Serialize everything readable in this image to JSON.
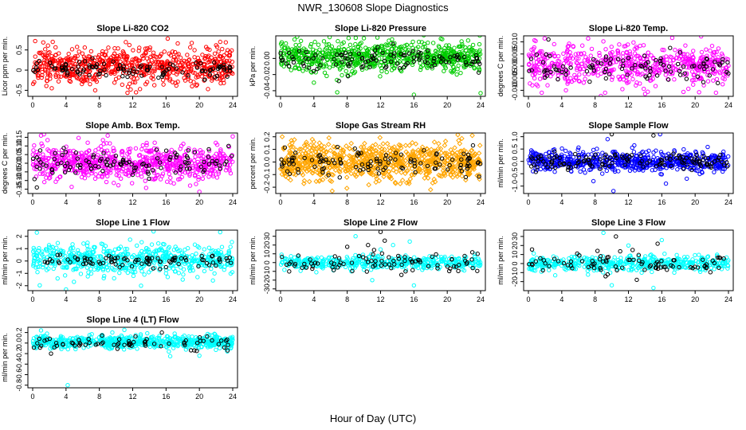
{
  "figure": {
    "title": "NWR_130608  Slope Diagnostics",
    "xlabel": "Hour of Day (UTC)"
  },
  "chart_data": [
    {
      "type": "scatter",
      "title": "Slope Li-820 CO2",
      "ylabel": "Licor ppm per min.",
      "xlim": [
        0,
        24
      ],
      "xticks": [
        0,
        4,
        8,
        12,
        16,
        20,
        24
      ],
      "ylim": [
        -0.65,
        0.85
      ],
      "yticks": [
        -0.5,
        0,
        0.5
      ],
      "yticklabels": [
        "-0.5",
        "0",
        "0.5"
      ],
      "series": [
        {
          "color": "#ff0000",
          "marker": "open-circle",
          "n": 700,
          "center": 0.1,
          "spread": 0.22,
          "outliers": [
            [
              0.3,
              0.72
            ],
            [
              16.2,
              0.78
            ],
            [
              22.5,
              0.7
            ],
            [
              12.4,
              -0.55
            ],
            [
              7.5,
              -0.5
            ]
          ]
        },
        {
          "color": "#000000",
          "marker": "open-circle",
          "n": 110,
          "center": 0.02,
          "spread": 0.12
        }
      ]
    },
    {
      "type": "scatter",
      "title": "Slope Li-820 Pressure",
      "ylabel": "kPa per min.",
      "xlim": [
        0,
        24
      ],
      "xticks": [
        0,
        4,
        8,
        12,
        16,
        20,
        24
      ],
      "ylim": [
        -0.047,
        0.028
      ],
      "yticks": [
        -0.04,
        -0.02,
        0
      ],
      "yticklabels": [
        "-0.04",
        "-0.02",
        "0.00"
      ],
      "series": [
        {
          "color": "#00cc00",
          "marker": "open-circle",
          "n": 700,
          "center": 0.002,
          "spread": 0.009,
          "outliers": [
            [
              2.0,
              0.027
            ],
            [
              4.0,
              -0.03
            ],
            [
              6.8,
              -0.042
            ],
            [
              10.0,
              0.025
            ],
            [
              16.0,
              -0.045
            ],
            [
              24.0,
              -0.043
            ],
            [
              13.0,
              0.022
            ]
          ]
        },
        {
          "color": "#000000",
          "marker": "open-circle",
          "n": 110,
          "center": 0.0,
          "spread": 0.006,
          "outliers": [
            [
              7.0,
              -0.028
            ],
            [
              8.1,
              -0.022
            ],
            [
              13.5,
              0.018
            ]
          ]
        }
      ]
    },
    {
      "type": "scatter",
      "title": "Slope Li-820 Temp.",
      "ylabel": "degrees C per min.",
      "xlim": [
        0,
        24
      ],
      "xticks": [
        0,
        4,
        8,
        12,
        16,
        20,
        24
      ],
      "ylim": [
        -0.0125,
        0.0125
      ],
      "yticks": [
        -0.01,
        -0.005,
        0,
        0.005,
        0.01
      ],
      "yticklabels": [
        "-0.010",
        "-0.005",
        "0.000",
        "0.005",
        "0.010"
      ],
      "series": [
        {
          "color": "#ff00ff",
          "marker": "open-circle",
          "n": 600,
          "center": 0.0008,
          "spread": 0.004,
          "outliers": [
            [
              1.6,
              -0.011
            ],
            [
              4.5,
              -0.01
            ],
            [
              9.2,
              -0.011
            ],
            [
              14.0,
              -0.0115
            ],
            [
              22.5,
              -0.011
            ]
          ]
        },
        {
          "color": "#000000",
          "marker": "open-circle",
          "n": 100,
          "center": 0.0,
          "spread": 0.003,
          "outliers": [
            [
              2.4,
              0.011
            ],
            [
              17.0,
              0.0075
            ]
          ]
        }
      ]
    },
    {
      "type": "scatter",
      "title": "Slope Amb. Box Temp.",
      "ylabel": "degrees C per min.",
      "xlim": [
        0,
        24
      ],
      "xticks": [
        0,
        4,
        8,
        12,
        16,
        20,
        24
      ],
      "ylim": [
        -0.175,
        0.175
      ],
      "yticks": [
        -0.15,
        -0.1,
        -0.05,
        0,
        0.05,
        0.1,
        0.15
      ],
      "yticklabels": [
        "-0.15",
        "-0.10",
        "-0.05",
        "0.00",
        "0.05",
        "0.10",
        "0.15"
      ],
      "series": [
        {
          "color": "#ff00ff",
          "marker": "open-circle",
          "n": 700,
          "center": 0.0,
          "spread": 0.05,
          "outliers": [
            [
              1.0,
              0.16
            ],
            [
              20.0,
              -0.165
            ],
            [
              9.0,
              0.16
            ],
            [
              24.0,
              0.155
            ]
          ]
        },
        {
          "color": "#000000",
          "marker": "open-circle",
          "n": 110,
          "center": 0.0,
          "spread": 0.04,
          "outliers": [
            [
              0.5,
              -0.14
            ],
            [
              23.5,
              0.1
            ]
          ]
        }
      ]
    },
    {
      "type": "scatter",
      "title": "Slope Gas Stream RH",
      "ylabel": "percent per min.",
      "xlim": [
        0,
        24
      ],
      "xticks": [
        0,
        4,
        8,
        12,
        16,
        20,
        24
      ],
      "ylim": [
        -0.25,
        0.23
      ],
      "yticks": [
        -0.2,
        -0.1,
        0,
        0.1,
        0.2
      ],
      "yticklabels": [
        "-0.2",
        "-0.1",
        "0.0",
        "0.1",
        "0.2"
      ],
      "series": [
        {
          "color": "#ffa500",
          "marker": "open-diamond",
          "n": 800,
          "center": 0.0,
          "spread": 0.07,
          "outliers": [
            [
              0.2,
              0.2
            ],
            [
              23.0,
              0.21
            ],
            [
              6.2,
              -0.23
            ],
            [
              18.0,
              -0.22
            ]
          ]
        },
        {
          "color": "#000000",
          "marker": "open-circle",
          "n": 110,
          "center": 0.0,
          "spread": 0.05
        }
      ]
    },
    {
      "type": "scatter",
      "title": "Slope Sample Flow",
      "ylabel": "ml/min per min.",
      "xlim": [
        0,
        24
      ],
      "xticks": [
        0,
        4,
        8,
        12,
        16,
        20,
        24
      ],
      "ylim": [
        -1.3,
        1.15
      ],
      "yticks": [
        -1.0,
        -0.5,
        0,
        0.5,
        1.0
      ],
      "yticklabels": [
        "-1.0",
        "-0.5",
        "0.0",
        "0.5",
        "1.0"
      ],
      "series": [
        {
          "color": "#0000ff",
          "marker": "open-circle",
          "n": 650,
          "center": 0.0,
          "spread": 0.2,
          "outliers": [
            [
              10.2,
              -1.2
            ],
            [
              15.8,
              1.1
            ],
            [
              9.5,
              0.9
            ],
            [
              16.5,
              -0.9
            ],
            [
              7.8,
              -0.8
            ],
            [
              19.0,
              -0.7
            ]
          ]
        },
        {
          "color": "#000000",
          "marker": "open-circle",
          "n": 130,
          "center": 0.0,
          "spread": 0.18,
          "outliers": [
            [
              10.0,
              1.1
            ],
            [
              15.0,
              1.05
            ]
          ]
        }
      ]
    },
    {
      "type": "scatter",
      "title": "Slope Line 1 Flow",
      "ylabel": "ml/min per min.",
      "xlim": [
        0,
        24
      ],
      "xticks": [
        0,
        4,
        8,
        12,
        16,
        20,
        24
      ],
      "ylim": [
        -2.4,
        2.5
      ],
      "yticks": [
        -2,
        -1,
        0,
        1,
        2
      ],
      "yticklabels": [
        "-2",
        "-1",
        "0",
        "1",
        "2"
      ],
      "series": [
        {
          "color": "#00ffff",
          "marker": "open-circle",
          "n": 600,
          "center": 0.1,
          "spread": 0.6,
          "outliers": [
            [
              0.5,
              2.3
            ],
            [
              13.0,
              -2.0
            ],
            [
              14.5,
              2.4
            ],
            [
              4.0,
              -2.3
            ],
            [
              18.0,
              -1.5
            ]
          ]
        },
        {
          "color": "#000000",
          "marker": "open-circle",
          "n": 90,
          "center": 0.0,
          "spread": 0.25
        }
      ]
    },
    {
      "type": "scatter",
      "title": "Slope Line 2 Flow",
      "ylabel": "ml/min per min.",
      "xlim": [
        0,
        24
      ],
      "xticks": [
        0,
        4,
        8,
        12,
        16,
        20,
        24
      ],
      "ylim": [
        -32,
        37
      ],
      "yticks": [
        -30,
        -20,
        -10,
        0,
        10,
        20,
        30
      ],
      "yticklabels": [
        "-30",
        "-20",
        "-10",
        "0",
        "10",
        "20",
        "30"
      ],
      "series": [
        {
          "color": "#00ffff",
          "marker": "open-circle",
          "n": 450,
          "center": 0.0,
          "spread": 3.5,
          "outliers": [
            [
              9.0,
              30
            ],
            [
              11.0,
              -20
            ],
            [
              13.5,
              20
            ],
            [
              16.0,
              -26
            ],
            [
              8.5,
              -10
            ],
            [
              15.5,
              24
            ],
            [
              12.0,
              15
            ]
          ]
        },
        {
          "color": "#000000",
          "marker": "open-circle",
          "n": 85,
          "center": 0.0,
          "spread": 6,
          "outliers": [
            [
              12.0,
              35
            ],
            [
              10.5,
              20
            ],
            [
              8.0,
              18
            ],
            [
              14.5,
              -14
            ],
            [
              15.0,
              -10
            ],
            [
              12.5,
              25
            ]
          ]
        }
      ]
    },
    {
      "type": "scatter",
      "title": "Slope Line 3 Flow",
      "ylabel": "ml/min per min.",
      "xlim": [
        0,
        24
      ],
      "xticks": [
        0,
        4,
        8,
        12,
        16,
        20,
        24
      ],
      "ylim": [
        -30,
        37
      ],
      "yticks": [
        -20,
        -10,
        0,
        10,
        20,
        30
      ],
      "yticklabels": [
        "-20",
        "-10",
        "0",
        "10",
        "20",
        "30"
      ],
      "series": [
        {
          "color": "#00ffff",
          "marker": "open-circle",
          "n": 450,
          "center": 0.0,
          "spread": 4,
          "outliers": [
            [
              9.0,
              34
            ],
            [
              10.0,
              -24
            ],
            [
              15.0,
              -27
            ],
            [
              12.0,
              20
            ],
            [
              16.0,
              26
            ],
            [
              17.5,
              -10
            ]
          ]
        },
        {
          "color": "#000000",
          "marker": "open-circle",
          "n": 85,
          "center": 0.0,
          "spread": 6,
          "outliers": [
            [
              10.5,
              30
            ],
            [
              13.0,
              -18
            ],
            [
              15.5,
              22
            ],
            [
              9.5,
              -12
            ],
            [
              12.5,
              15
            ]
          ]
        }
      ]
    },
    {
      "type": "scatter",
      "title": "Slope Line 4 (LT) Flow",
      "ylabel": "ml/min per min.",
      "xlim": [
        0,
        24
      ],
      "xticks": [
        0,
        4,
        8,
        12,
        16,
        20,
        24
      ],
      "ylim": [
        -0.85,
        0.3
      ],
      "yticks": [
        -0.8,
        -0.6,
        -0.4,
        -0.2,
        0,
        0.2
      ],
      "yticklabels": [
        "-0.8",
        "-0.6",
        "-0.4",
        "-0.2",
        "0.0",
        "0.2"
      ],
      "series": [
        {
          "color": "#00ffff",
          "marker": "open-circle",
          "n": 650,
          "center": 0.02,
          "spread": 0.06,
          "outliers": [
            [
              4.2,
              -0.8
            ],
            [
              16.5,
              -0.25
            ],
            [
              20.0,
              -0.24
            ],
            [
              1.0,
              0.24
            ],
            [
              11.0,
              0.25
            ]
          ]
        },
        {
          "color": "#000000",
          "marker": "open-circle",
          "n": 70,
          "center": 0.0,
          "spread": 0.07,
          "outliers": [
            [
              2.2,
              -0.2
            ],
            [
              15.5,
              0.2
            ]
          ]
        }
      ]
    }
  ]
}
